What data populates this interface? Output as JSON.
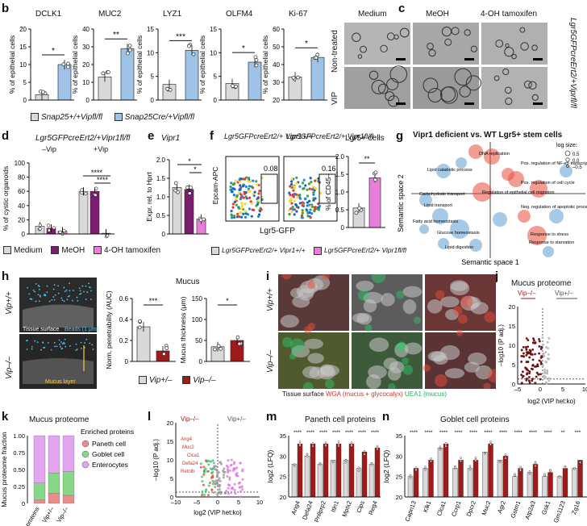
{
  "panels": [
    "b",
    "c",
    "d",
    "e",
    "f",
    "g",
    "h",
    "i",
    "j",
    "k",
    "l",
    "m",
    "n"
  ],
  "b": {
    "ylabel": "% of epithelial cells",
    "charts": [
      {
        "title": "DCLK1",
        "ymax": 20,
        "ticks": [
          "0",
          "5",
          "10",
          "15",
          "20"
        ],
        "values": [
          1.5,
          10
        ],
        "sig": "*"
      },
      {
        "title": "MUC2",
        "ymax": 40,
        "ticks": [
          "0",
          "10",
          "20",
          "30",
          "40"
        ],
        "values": [
          13,
          29
        ],
        "sig": "**"
      },
      {
        "title": "LYZ1",
        "ymax": 15,
        "ticks": [
          "0",
          "5",
          "10",
          "15"
        ],
        "values": [
          3.3,
          10.5
        ],
        "sig": "***"
      },
      {
        "title": "OLFM4",
        "ymax": 15,
        "ticks": [
          "0",
          "5",
          "10",
          "15"
        ],
        "values": [
          3.5,
          8
        ],
        "sig": "*"
      },
      {
        "title": "Ki-67",
        "ymax": 60,
        "ticks": [
          "20",
          "30",
          "40",
          "50",
          "60"
        ],
        "values": [
          33,
          44
        ],
        "sig": "*"
      }
    ],
    "legend": [
      "Snap25+/+Vipfl/fl",
      "Snap25Cre/+Vipfl/fl"
    ],
    "colors": [
      "#d9d9d9",
      "#9ec3e6"
    ]
  },
  "c": {
    "cols": [
      "Medium",
      "MeOH",
      "4-OH tamoxifen"
    ],
    "rows": [
      "Non-treated",
      "VIP"
    ],
    "side_label": "Lgr5GFPcreErt2/+Viprfl/fl"
  },
  "d": {
    "title": "Lgr5GFPcreErt2/+Vipr1fl/fl",
    "groups": [
      "–Vip",
      "+Vip"
    ],
    "ylabel": "% of cystic organoids",
    "ticks": [
      "0",
      "20",
      "40",
      "60",
      "80",
      "100"
    ],
    "values": [
      11,
      8,
      4,
      60,
      60,
      1
    ],
    "sig": [
      "****",
      "****"
    ],
    "legend": [
      "Medium",
      "MeOH",
      "4-OH tamoxifen"
    ],
    "colors": [
      "#d9d9d9",
      "#7b1c6e",
      "#e77fd8"
    ]
  },
  "e": {
    "title": "Vipr1",
    "ylabel": "Expr. rel. to Hprt",
    "ticks": [
      "0",
      "0.5",
      "1.0",
      "1.5",
      "2.0"
    ],
    "values": [
      1.25,
      1.2,
      0.4
    ],
    "sig": [
      "*",
      "*"
    ]
  },
  "f": {
    "plot1_title": "Lgr5GFPcreErt2/+ Vipr1+/+",
    "plot2_title": "Lgr5GFPcreErt2/+ Vipr1fl/fl",
    "val1": "0.08",
    "val2": "0.16",
    "yaxis": "Epcam-APC",
    "xaxis": "Lgr5-GFP",
    "bar_title": "Lgr5+ cells",
    "bar_ylabel": "% of CD45–",
    "bar_ticks": [
      "0",
      "0.5",
      "1.0",
      "1.5",
      "2.0"
    ],
    "bar_values": [
      0.55,
      1.4
    ],
    "sig": "**",
    "legend": [
      "Lgr5GFPcreErt2/+ Vipr1+/+",
      "Lgr5GFPcreErt2/+ Vipr1fl/fl"
    ]
  },
  "g": {
    "title": "Vipr1 deficient vs. WT Lgr5+ stem cells",
    "xlabel": "Semantic space 1",
    "ylabel": "Semantic space 2",
    "size_legend_title": "log size:",
    "size_legend": [
      "0.5",
      "0.0",
      "–0.5"
    ],
    "terms": [
      "DNA replication",
      "Lipid catabolic process",
      "Pos. regulation of NF-κB transcription activity",
      "Pos. regulation of cell cycle",
      "Carbohydrate transport",
      "Regulation of epithelial cell migration",
      "Lipid transport",
      "Neg. regulation of apoptotic process",
      "Fatty acid homeostasis",
      "Glucose homeostasis",
      "Lipid digestion",
      "Response to stress",
      "Response to starvation"
    ]
  },
  "h": {
    "img_label1": "Vip+/+",
    "img_label2": "Vip–/–",
    "tissue_label": "Tissue surface",
    "beads_label": "Beads (1 μm)",
    "mucus_label": "Mucus layer",
    "title": "Mucus",
    "chart1_ylabel": "Norm. penetrability (AUC)",
    "chart1_ticks": [
      "0",
      "0.2",
      "0.4",
      "0.6"
    ],
    "chart1_values": [
      0.33,
      0.1
    ],
    "chart1_sig": "***",
    "chart2_ylabel": "Mucus thickness (μm)",
    "chart2_ticks": [
      "0",
      "50",
      "100",
      "150"
    ],
    "chart2_values": [
      35,
      50
    ],
    "chart2_sig": "*",
    "legend": [
      "Vip+/–",
      "Vip–/–"
    ],
    "colors": [
      "#d9d9d9",
      "#a11a1a"
    ]
  },
  "i": {
    "row_labels": [
      "Vip+/+",
      "Vip–/–"
    ],
    "caption_parts": [
      "Tissue surface",
      "WGA (mucus + glycocalyx)",
      "UEA1 (mucus)"
    ]
  },
  "j": {
    "title": "Mucus proteome",
    "left_label": "Vip–/–",
    "right_label": "Vip+/–",
    "xlabel": "log2 (VIP het:ko)",
    "ylabel": "–log10 (P adj.)",
    "xticks": [
      "–5",
      "0",
      "5",
      "10"
    ],
    "yticks": [
      "0",
      "5",
      "10",
      "15",
      "20"
    ]
  },
  "k": {
    "title": "Mucus proteome",
    "ylabel": "Mucus proteome fraction",
    "ticks": [
      "0",
      "0.25",
      "0.50",
      "0.75",
      "1.00"
    ],
    "categories": [
      "All proteins",
      "Vip+/–",
      "Vip–/–"
    ],
    "legend_title": "Enriched proteins",
    "legend": [
      "Paneth cell",
      "Goblet cell",
      "Enterocytes"
    ],
    "colors": [
      "#e98c8c",
      "#88d688",
      "#e2a6f0"
    ]
  },
  "l": {
    "left_label": "Vip–/–",
    "right_label": "Vip+/–",
    "xlabel": "log2 (VIP het:ko)",
    "ylabel": "–log10 (P adj.)",
    "xticks": [
      "–10",
      "–5",
      "0",
      "5",
      "10"
    ],
    "yticks": [
      "0",
      "5",
      "10",
      "15",
      "20"
    ],
    "gene_labels": [
      "Ang4",
      "Muc2",
      "Clca1",
      "Defa24",
      "Retnlb"
    ]
  },
  "m": {
    "title": "Paneth cell proteins",
    "ylabel": "log2 (LFQ)",
    "ticks": [
      "20",
      "25",
      "30",
      "35"
    ],
    "categories": [
      "Ang4",
      "Defa24",
      "Pnliprp2",
      "Itln1",
      "Mptx2",
      "Clps",
      "Reg4"
    ],
    "values": [
      [
        28,
        33
      ],
      [
        30,
        33
      ],
      [
        28,
        33
      ],
      [
        29,
        33
      ],
      [
        29,
        33
      ],
      [
        27,
        31
      ],
      [
        28,
        32
      ]
    ],
    "sig": [
      "****",
      "****",
      "****",
      "****",
      "****",
      "****",
      "****"
    ]
  },
  "n": {
    "title": "Goblet cell proteins",
    "ylabel": "log2 (LFQ)",
    "ticks": [
      "20",
      "25",
      "30",
      "35"
    ],
    "categories": [
      "Capn13",
      "Klk1",
      "Clca1",
      "Ccrp1",
      "Dpcr2",
      "Muc2",
      "Agr2",
      "Gstm1",
      "Atp2a3",
      "Gsk1",
      "Gm1123",
      "Zg16"
    ],
    "values": [
      [
        25,
        27
      ],
      [
        27,
        29
      ],
      [
        32,
        33
      ],
      [
        27,
        29
      ],
      [
        27,
        29
      ],
      [
        31,
        33
      ],
      [
        29,
        30
      ],
      [
        25,
        27
      ],
      [
        26,
        28
      ],
      [
        25,
        26
      ],
      [
        25,
        27
      ],
      [
        27,
        29
      ]
    ],
    "sig": [
      "****",
      "****",
      "****",
      "****",
      "****",
      "****",
      "****",
      "****",
      "****",
      "****",
      "**",
      "***"
    ]
  }
}
